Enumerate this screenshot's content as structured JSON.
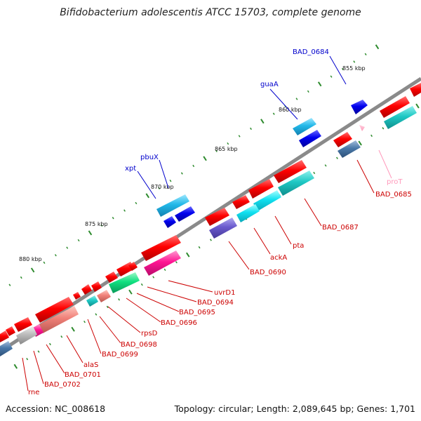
{
  "title": "Bifidobacterium adolescentis ATCC 15703, complete genome",
  "footer": {
    "accession": "Accession: NC_008618",
    "stats": "Topology: circular; Length: 2,089,645 bp; Genes: 1,701"
  },
  "colors": {
    "backbone": "#8a8a8a",
    "tick": "#2e8b2e",
    "label_red": "#cc0000",
    "label_blue": "#0000cc",
    "label_pink": "#ff99bb"
  },
  "kbp_labels": [
    "855 kbp",
    "860 kbp",
    "865 kbp",
    "870 kbp",
    "875 kbp",
    "880 kbp"
  ],
  "gene_labels_top": [
    "BAD_0684",
    "guaA",
    "pbuX",
    "xpt"
  ],
  "gene_labels_bottom": [
    "proT",
    "BAD_0685",
    "BAD_0687",
    "pta",
    "ackA",
    "BAD_0690",
    "uvrD1",
    "BAD_0694",
    "BAD_0695",
    "BAD_0696",
    "rpsD",
    "BAD_0698",
    "BAD_0699",
    "alaS",
    "BAD_0701",
    "BAD_0702",
    "rne"
  ]
}
